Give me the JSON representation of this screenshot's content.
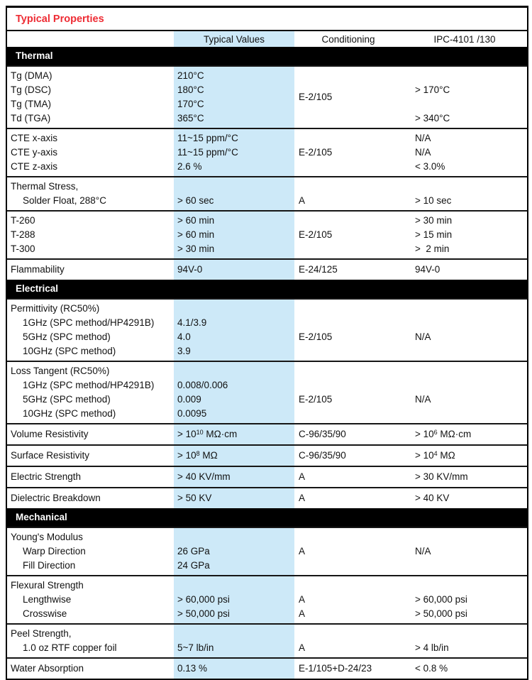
{
  "title": "Typical Properties",
  "columns": {
    "typical": "Typical Values",
    "conditioning": "Conditioning",
    "ipc": "IPC-4101 /130"
  },
  "colors": {
    "highlight_blue": "#cde9f8",
    "title_red": "#ee2c34",
    "section_bar": "#000000"
  },
  "sections": [
    {
      "name": "Thermal",
      "groups": [
        {
          "cond_center": "E-2/105",
          "rows": [
            {
              "label": "Tg (DMA)",
              "indent": false,
              "typical": "210°C",
              "ipc": ""
            },
            {
              "label": "Tg (DSC)",
              "indent": false,
              "typical": "180°C",
              "ipc": "> 170°C"
            },
            {
              "label": "Tg (TMA)",
              "indent": false,
              "typical": "170°C",
              "ipc": ""
            },
            {
              "label": "Td (TGA)",
              "indent": false,
              "typical": "365°C",
              "ipc": "> 340°C"
            }
          ]
        },
        {
          "rows": [
            {
              "label": "CTE x-axis",
              "indent": false,
              "typical": "11~15 ppm/°C",
              "cond": "",
              "ipc": "N/A"
            },
            {
              "label": "CTE y-axis",
              "indent": false,
              "typical": "11~15 ppm/°C",
              "cond": "E-2/105",
              "ipc": "N/A"
            },
            {
              "label": "CTE z-axis",
              "indent": false,
              "typical": "2.6 %",
              "cond": "",
              "ipc": "< 3.0%"
            }
          ]
        },
        {
          "rows": [
            {
              "label": "Thermal Stress,",
              "indent": false,
              "typical": "",
              "cond": "",
              "ipc": ""
            },
            {
              "label": "Solder Float, 288°C",
              "indent": true,
              "typical": "> 60 sec",
              "cond": "A",
              "ipc": "> 10 sec"
            }
          ]
        },
        {
          "rows": [
            {
              "label": "T-260",
              "indent": false,
              "typical": "> 60 min",
              "cond": "",
              "ipc": "> 30 min"
            },
            {
              "label": "T-288",
              "indent": false,
              "typical": "> 60 min",
              "cond": "E-2/105",
              "ipc": "> 15 min"
            },
            {
              "label": "T-300",
              "indent": false,
              "typical": "> 30 min",
              "cond": "",
              "ipc": ">  2 min"
            }
          ]
        },
        {
          "rows": [
            {
              "label": "Flammability",
              "indent": false,
              "typical": "94V-0",
              "cond": "E-24/125",
              "ipc": "94V-0"
            }
          ]
        }
      ]
    },
    {
      "name": "Electrical",
      "groups": [
        {
          "rows": [
            {
              "label": "Permittivity (RC50%)",
              "indent": false,
              "typical": "",
              "cond": "",
              "ipc": ""
            },
            {
              "label": "1GHz (SPC method/HP4291B)",
              "indent": true,
              "typical": "4.1/3.9",
              "cond": "",
              "ipc": ""
            },
            {
              "label": "5GHz (SPC method)",
              "indent": true,
              "typical": "4.0",
              "cond": "E-2/105",
              "ipc": "N/A"
            },
            {
              "label": "10GHz (SPC method)",
              "indent": true,
              "typical": "3.9",
              "cond": "",
              "ipc": ""
            }
          ]
        },
        {
          "rows": [
            {
              "label": "Loss Tangent (RC50%)",
              "indent": false,
              "typical": "",
              "cond": "",
              "ipc": ""
            },
            {
              "label": "1GHz (SPC method/HP4291B)",
              "indent": true,
              "typical": "0.008/0.006",
              "cond": "",
              "ipc": ""
            },
            {
              "label": "5GHz (SPC method)",
              "indent": true,
              "typical": "0.009",
              "cond": "E-2/105",
              "ipc": "N/A"
            },
            {
              "label": "10GHz (SPC method)",
              "indent": true,
              "typical": "0.0095",
              "cond": "",
              "ipc": ""
            }
          ]
        },
        {
          "rows": [
            {
              "label": "Volume Resistivity",
              "indent": false,
              "typical": "> 10^{10} MΩ·cm",
              "cond": "C-96/35/90",
              "ipc": "> 10^{6} MΩ·cm"
            }
          ]
        },
        {
          "rows": [
            {
              "label": "Surface Resistivity",
              "indent": false,
              "typical": "> 10^{8} MΩ",
              "cond": "C-96/35/90",
              "ipc": "> 10^{4} MΩ"
            }
          ]
        },
        {
          "rows": [
            {
              "label": "Electric Strength",
              "indent": false,
              "typical": "> 40 KV/mm",
              "cond": "A",
              "ipc": "> 30 KV/mm"
            }
          ]
        },
        {
          "rows": [
            {
              "label": "Dielectric Breakdown",
              "indent": false,
              "typical": "> 50 KV",
              "cond": "A",
              "ipc": "> 40 KV"
            }
          ]
        }
      ]
    },
    {
      "name": "Mechanical",
      "groups": [
        {
          "cond_center": "A",
          "ipc_center": "N/A",
          "rows": [
            {
              "label": "Young's Modulus",
              "indent": false,
              "typical": ""
            },
            {
              "label": "Warp Direction",
              "indent": true,
              "typical": "26 GPa"
            },
            {
              "label": "Fill Direction",
              "indent": true,
              "typical": "24 GPa"
            }
          ]
        },
        {
          "rows": [
            {
              "label": "Flexural Strength",
              "indent": false,
              "typical": "",
              "cond": "",
              "ipc": ""
            },
            {
              "label": "Lengthwise",
              "indent": true,
              "typical": "> 60,000 psi",
              "cond": "A",
              "ipc": "> 60,000 psi"
            },
            {
              "label": "Crosswise",
              "indent": true,
              "typical": "> 50,000 psi",
              "cond": "A",
              "ipc": "> 50,000 psi"
            }
          ]
        },
        {
          "rows": [
            {
              "label": "Peel Strength,",
              "indent": false,
              "typical": "",
              "cond": "",
              "ipc": ""
            },
            {
              "label": "1.0 oz RTF copper foil",
              "indent": true,
              "typical": "5~7 lb/in",
              "cond": "A",
              "ipc": "> 4 lb/in"
            }
          ]
        },
        {
          "rows": [
            {
              "label": "Water Absorption",
              "indent": false,
              "typical": "0.13 %",
              "cond": "E-1/105+D-24/23",
              "ipc": "< 0.8 %"
            }
          ]
        }
      ]
    }
  ]
}
